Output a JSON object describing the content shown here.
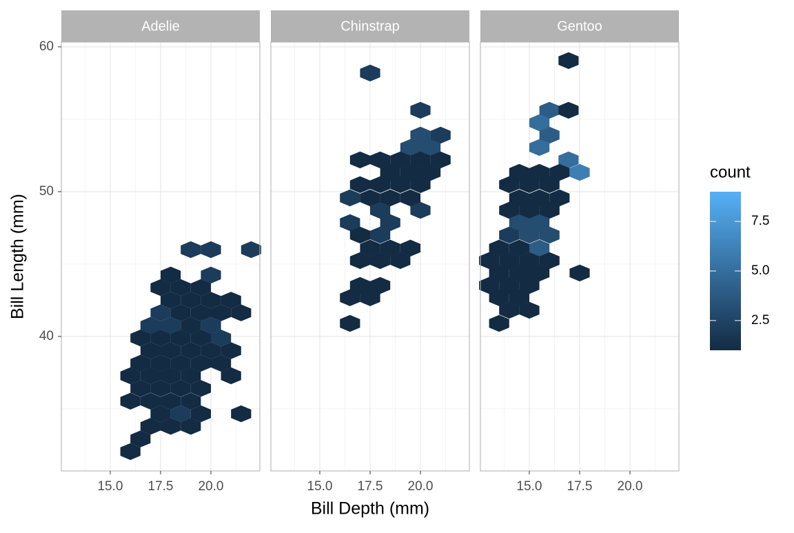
{
  "chart_data": {
    "type": "hexbin",
    "x_label": "Bill Depth (mm)",
    "y_label": "Bill Length (mm)",
    "xlim": [
      12.57,
      22.43
    ],
    "ylim": [
      30.71,
      60.33
    ],
    "xticks": [
      {
        "value": 15,
        "label": "15.0"
      },
      {
        "value": 17.5,
        "label": "17.5"
      },
      {
        "value": 20,
        "label": "20.0"
      }
    ],
    "yticks": [
      40,
      50,
      60
    ],
    "xminor": [
      13.75,
      16.25,
      18.75,
      21.25
    ],
    "yminor": [
      35,
      45,
      55
    ],
    "grid": true,
    "legend_title": "count",
    "color_low": "#132B43",
    "color_high": "#56B1F7",
    "color_lim": [
      1,
      9
    ],
    "color_ticks": [
      {
        "value": 2.5,
        "label": "2.5"
      },
      {
        "value": 5,
        "label": "5.0"
      },
      {
        "value": 7.5,
        "label": "7.5"
      }
    ],
    "panels": [
      {
        "name": "Adelie",
        "x": [
          16,
          16.5,
          17,
          18,
          19,
          17.5,
          18.5,
          19.5,
          21.5,
          16,
          17,
          18,
          19,
          16.5,
          17.5,
          18.5,
          19.5,
          16,
          17,
          18,
          19,
          21,
          16.5,
          17.5,
          18.5,
          19.5,
          20.5,
          17,
          18,
          19,
          20,
          21,
          16.5,
          17.5,
          18.5,
          19.5,
          20.5,
          17,
          18,
          19,
          20,
          17.5,
          18.5,
          19.5,
          20.5,
          21.5,
          18,
          19,
          20,
          21,
          17.5,
          18.5,
          19.5,
          18,
          20,
          19,
          20,
          22
        ],
        "y": [
          32.05,
          32.92,
          33.79,
          33.79,
          33.79,
          34.66,
          34.66,
          34.66,
          34.66,
          35.53,
          35.53,
          35.53,
          35.53,
          36.41,
          36.41,
          36.41,
          36.41,
          37.28,
          37.28,
          37.28,
          37.28,
          37.28,
          38.15,
          38.15,
          38.15,
          38.15,
          38.15,
          39.02,
          39.02,
          39.02,
          39.02,
          39.02,
          39.89,
          39.89,
          39.89,
          39.89,
          39.89,
          40.76,
          40.76,
          40.76,
          40.76,
          41.63,
          41.63,
          41.63,
          41.63,
          41.63,
          42.5,
          42.5,
          42.5,
          42.5,
          43.37,
          43.37,
          43.37,
          44.24,
          44.24,
          45.99,
          45.99,
          45.99
        ],
        "values": [
          1,
          1,
          1,
          1,
          1,
          1,
          2,
          1,
          1,
          1,
          1,
          1,
          1,
          1,
          1,
          1,
          1,
          1,
          1,
          1,
          1,
          1,
          1,
          1,
          1,
          1,
          1,
          1,
          1,
          1,
          1,
          1,
          1,
          1,
          1,
          1,
          2,
          2,
          2,
          1,
          2,
          2,
          1,
          1,
          1,
          1,
          1,
          1,
          1,
          1,
          1,
          1,
          1,
          1,
          2,
          2,
          2,
          2
        ]
      },
      {
        "name": "Chinstrap",
        "x": [
          17.5,
          20,
          20,
          21,
          19.5,
          20.5,
          17,
          18,
          19,
          20,
          21,
          18.5,
          19.5,
          20.5,
          17,
          18,
          19,
          20,
          16.5,
          17.5,
          18.5,
          19.5,
          18,
          20,
          16.5,
          18.5,
          17,
          18,
          17.5,
          18.5,
          19.5,
          17,
          18,
          19,
          17,
          18,
          16.5,
          17.5,
          16.5
        ],
        "y": [
          58.19,
          55.62,
          53.9,
          53.9,
          53.05,
          53.05,
          52.19,
          52.19,
          52.19,
          52.19,
          52.19,
          51.33,
          51.33,
          51.33,
          50.48,
          50.48,
          50.48,
          50.48,
          49.57,
          49.57,
          49.57,
          49.57,
          48.71,
          48.71,
          47.86,
          47.86,
          47,
          47,
          46.1,
          46.1,
          46.1,
          45.24,
          45.24,
          45.24,
          43.52,
          43.52,
          42.67,
          42.67,
          40.9
        ],
        "values": [
          2,
          2,
          3,
          2,
          3,
          3,
          1,
          1,
          1,
          1,
          1,
          1,
          1,
          1,
          1,
          1,
          1,
          1,
          2,
          1,
          1,
          1,
          2,
          2,
          2,
          2,
          1,
          2,
          1,
          1,
          1,
          1,
          1,
          1,
          1,
          1,
          1,
          1,
          1
        ]
      },
      {
        "name": "Gentoo",
        "x": [
          16.95,
          16,
          16.95,
          15.5,
          16,
          15.5,
          16.95,
          17.5,
          14.5,
          15.5,
          16.5,
          14,
          15,
          16,
          14.5,
          15.5,
          16.5,
          14,
          15,
          16,
          14.5,
          15.5,
          14,
          15,
          16,
          13.5,
          14.5,
          15.5,
          13,
          14,
          15,
          16,
          13.5,
          14.5,
          15.5,
          17.5,
          13,
          14,
          15,
          13.5,
          14.5,
          14,
          15,
          13.5
        ],
        "y": [
          59.05,
          55.62,
          55.62,
          54.76,
          53.9,
          53.05,
          52.19,
          51.33,
          51.33,
          51.33,
          51.33,
          50.48,
          50.48,
          50.48,
          49.57,
          49.57,
          49.57,
          48.71,
          48.71,
          48.71,
          47.86,
          47.86,
          47,
          47,
          47,
          46.1,
          46.1,
          46.1,
          45.24,
          45.24,
          45.24,
          45.24,
          44.38,
          44.38,
          44.38,
          44.38,
          43.52,
          43.52,
          43.52,
          42.67,
          42.67,
          41.81,
          41.81,
          40.9
        ],
        "values": [
          1,
          4,
          1,
          5,
          4,
          5,
          5,
          6,
          1,
          1,
          1,
          1,
          1,
          1,
          1,
          1,
          1,
          1,
          1,
          1,
          3,
          3,
          2,
          3,
          3,
          1,
          1,
          4,
          1,
          1,
          1,
          1,
          1,
          1,
          1,
          1,
          1,
          1,
          1,
          1,
          1,
          1,
          1,
          1
        ]
      }
    ]
  }
}
